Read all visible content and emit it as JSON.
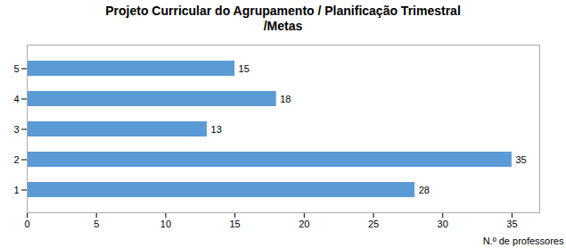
{
  "chart_data": {
    "type": "bar",
    "orientation": "horizontal",
    "title": "Projeto Curricular do Agrupamento / Planificação Trimestral\n/Metas",
    "categories": [
      "1",
      "2",
      "3",
      "4",
      "5"
    ],
    "values": [
      28,
      35,
      13,
      18,
      15
    ],
    "color": "#5B9BD5",
    "xlabel": "N.º de professores",
    "xlim": [
      0,
      37
    ],
    "xticks": [
      0,
      5,
      10,
      15,
      20,
      25,
      30,
      35
    ],
    "data_labels": true,
    "grid": false
  }
}
